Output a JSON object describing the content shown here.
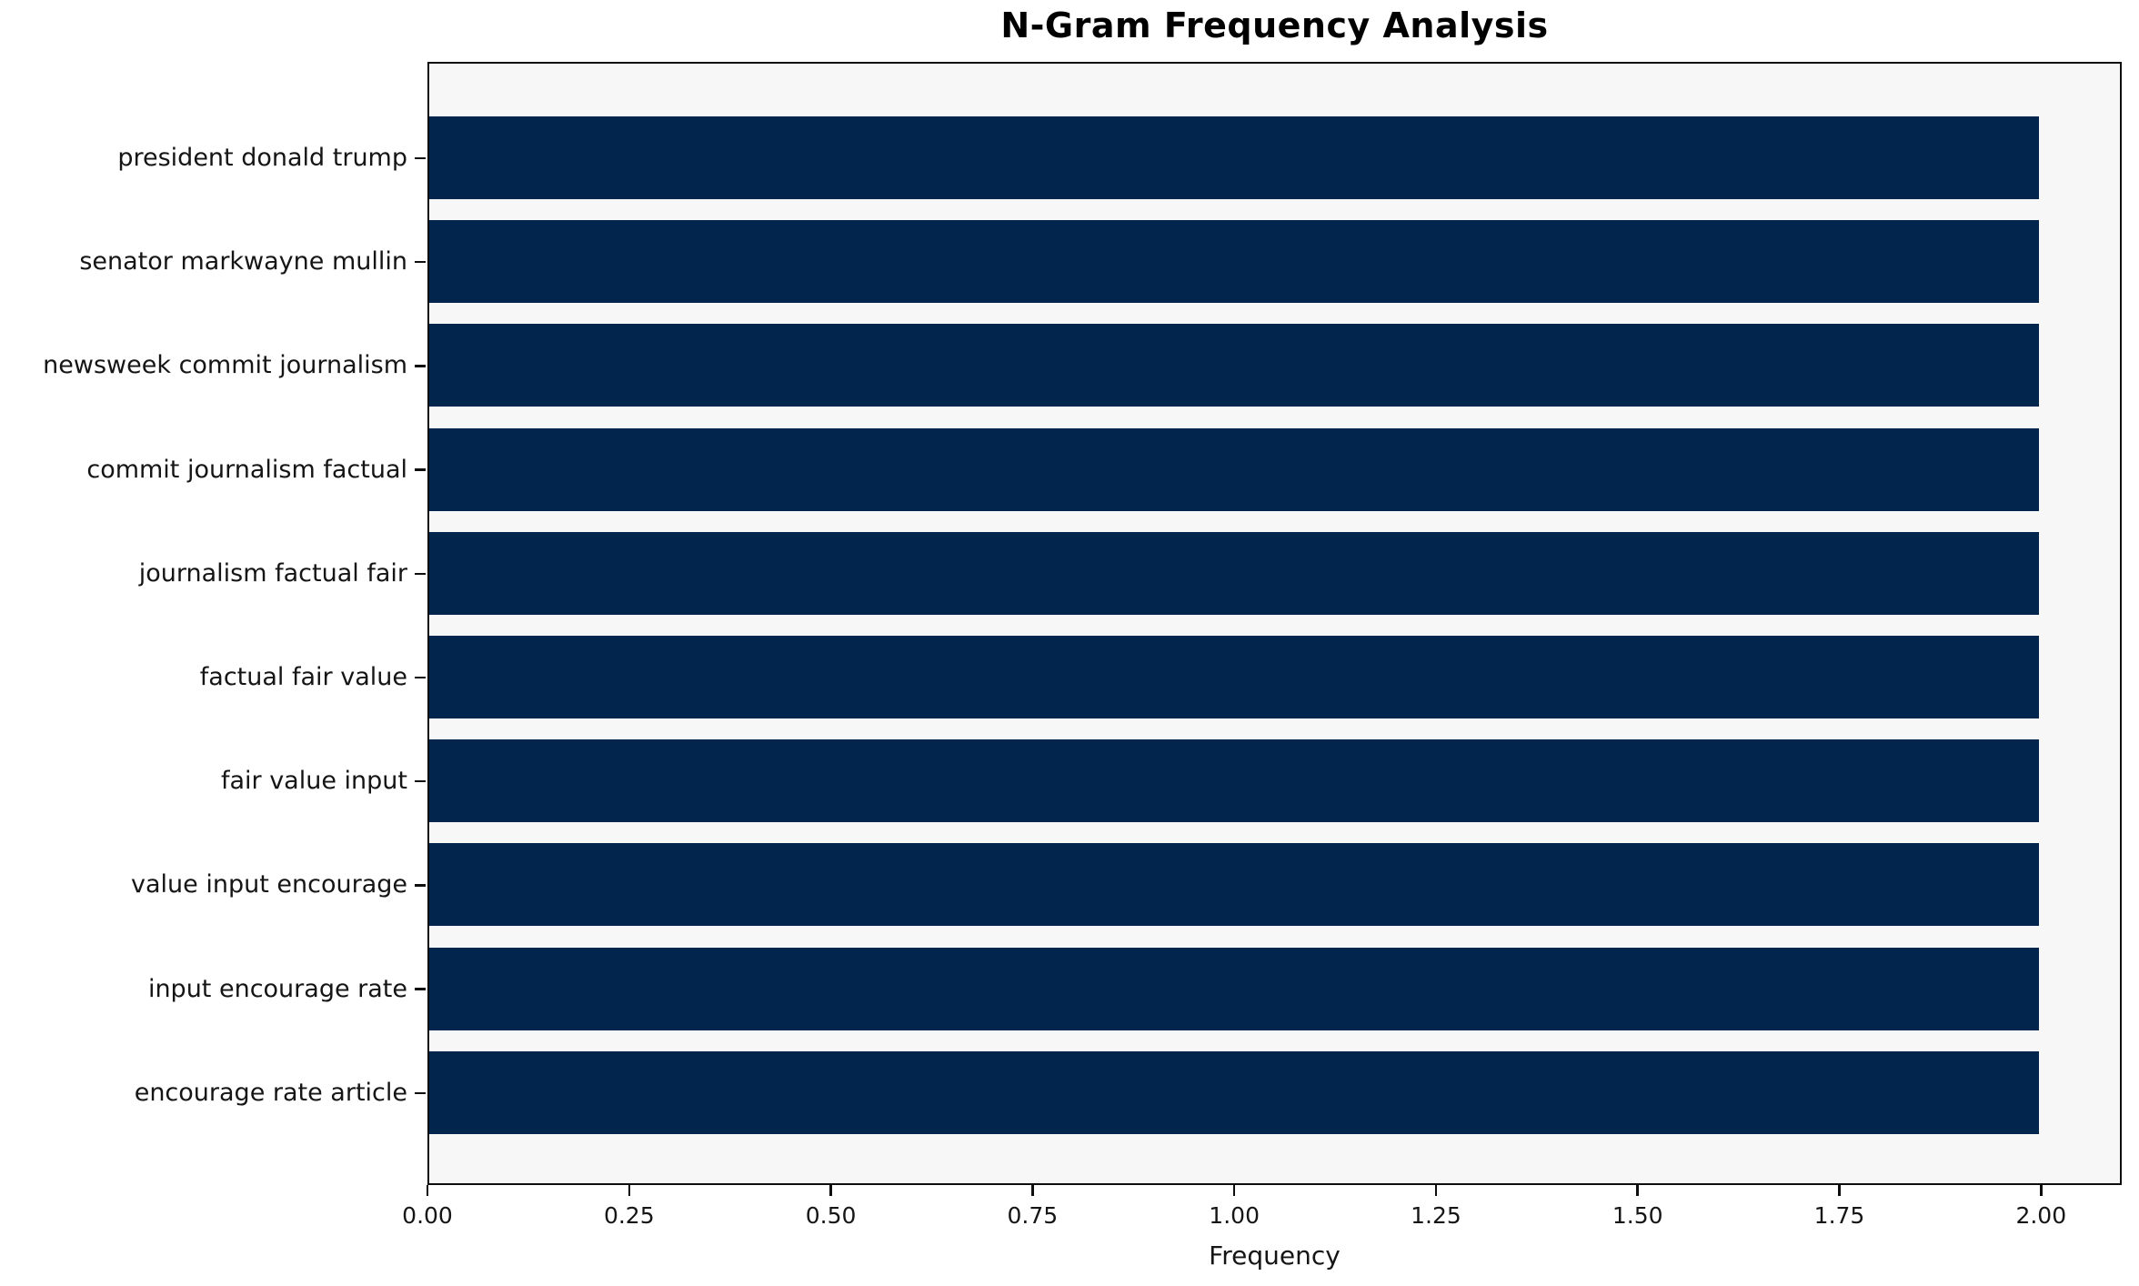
{
  "chart_data": {
    "type": "bar",
    "orientation": "horizontal",
    "title": "N-Gram Frequency Analysis",
    "xlabel": "Frequency",
    "ylabel": "",
    "categories": [
      "president donald trump",
      "senator markwayne mullin",
      "newsweek commit journalism",
      "commit journalism factual",
      "journalism factual fair",
      "factual fair value",
      "fair value input",
      "value input encourage",
      "input encourage rate",
      "encourage rate article"
    ],
    "values": [
      2,
      2,
      2,
      2,
      2,
      2,
      2,
      2,
      2,
      2
    ],
    "xlim": [
      0,
      2.1
    ],
    "xticks": [
      {
        "value": 0.0,
        "label": "0.00"
      },
      {
        "value": 0.25,
        "label": "0.25"
      },
      {
        "value": 0.5,
        "label": "0.50"
      },
      {
        "value": 0.75,
        "label": "0.75"
      },
      {
        "value": 1.0,
        "label": "1.00"
      },
      {
        "value": 1.25,
        "label": "1.25"
      },
      {
        "value": 1.5,
        "label": "1.50"
      },
      {
        "value": 1.75,
        "label": "1.75"
      },
      {
        "value": 2.0,
        "label": "2.00"
      }
    ],
    "grid": false,
    "legend": null,
    "bar_height_fraction": 0.8,
    "colors": {
      "bar": "#02254e",
      "plot_background": "#f7f7f8",
      "figure_background": "#ffffff",
      "spine": "#0e0e0e",
      "text": "#151515"
    }
  }
}
